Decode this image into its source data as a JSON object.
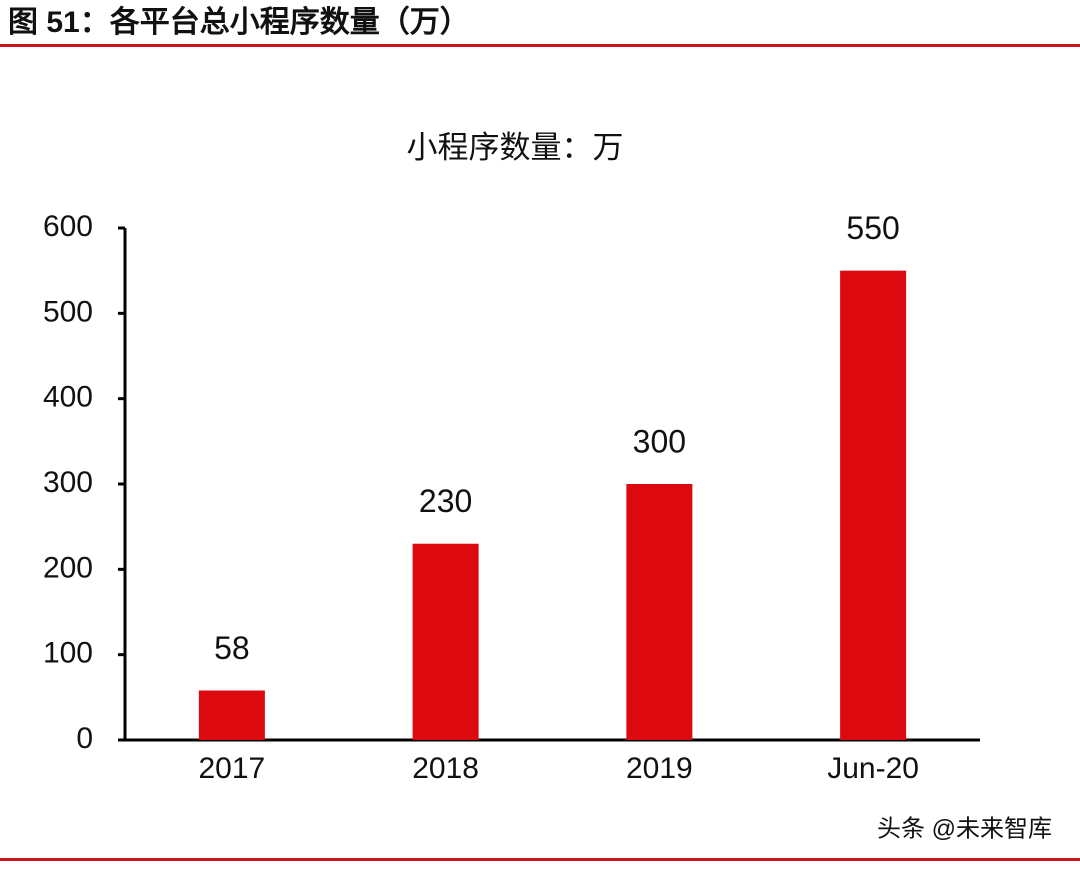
{
  "header": {
    "title": "图 51：各平台总小程序数量（万）"
  },
  "chart_data": {
    "type": "bar",
    "title": "小程序数量：万",
    "categories": [
      "2017",
      "2018",
      "2019",
      "Jun-20"
    ],
    "values": [
      58,
      230,
      300,
      550
    ],
    "color": "#dc0a0f",
    "ylim": [
      0,
      600
    ],
    "yticks": [
      0,
      100,
      200,
      300,
      400,
      500,
      600
    ],
    "grid": false,
    "data_labels": true
  },
  "watermark": "头条 @未来智库"
}
